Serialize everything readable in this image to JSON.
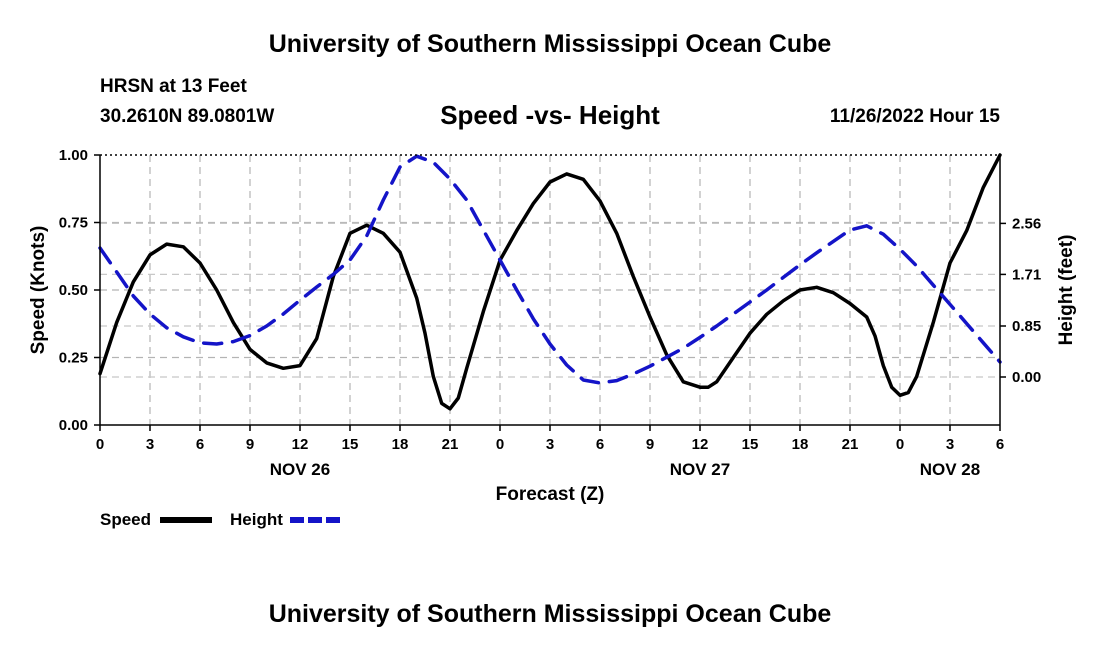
{
  "header": {
    "title": "University of Southern Mississippi Ocean Cube",
    "station": "HRSN at 13 Feet",
    "coords": "30.2610N  89.0801W",
    "subtitle": "Speed -vs- Height",
    "timestamp": "11/26/2022 Hour 15"
  },
  "footer": {
    "title": "University of Southern Mississippi Ocean Cube"
  },
  "chart_data": {
    "type": "line",
    "title": "Speed -vs- Height",
    "xlabel": "Forecast (Z)",
    "ylabel_left": "Speed (Knots)",
    "ylabel_right": "Height (feet)",
    "x_range_hours": [
      0,
      54
    ],
    "x_tick_hours": [
      0,
      3,
      6,
      9,
      12,
      15,
      18,
      21,
      24,
      27,
      30,
      33,
      36,
      39,
      42,
      45,
      48,
      51,
      54
    ],
    "x_tick_labels": [
      "0",
      "3",
      "6",
      "9",
      "12",
      "15",
      "18",
      "21",
      "0",
      "3",
      "6",
      "9",
      "12",
      "15",
      "18",
      "21",
      "0",
      "3",
      "6"
    ],
    "day_labels": [
      {
        "hour": 12,
        "label": "NOV 26"
      },
      {
        "hour": 36,
        "label": "NOV 27"
      },
      {
        "hour": 51,
        "label": "NOV 28"
      }
    ],
    "left_axis": {
      "range": [
        0,
        1
      ],
      "ticks": [
        0,
        0.25,
        0.5,
        0.75,
        1.0
      ],
      "tick_labels": [
        "0.00",
        "0.25",
        "0.50",
        "0.75",
        "1.00"
      ]
    },
    "right_axis": {
      "range": [
        -0.8,
        3.7
      ],
      "ticks": [
        0.0,
        0.85,
        1.71,
        2.56
      ],
      "tick_labels": [
        "0.00",
        "0.85",
        "1.71",
        "2.56"
      ]
    },
    "grid": true,
    "legend": [
      {
        "name": "Speed",
        "color": "#000000",
        "style": "solid"
      },
      {
        "name": "Height",
        "color": "#1414c8",
        "style": "dashed"
      }
    ],
    "series": [
      {
        "name": "Speed",
        "units": "Knots",
        "axis": "left",
        "color": "#000000",
        "x": [
          0,
          1,
          2,
          3,
          4,
          5,
          6,
          7,
          8,
          9,
          10,
          11,
          12,
          13,
          14,
          15,
          16,
          17,
          18,
          19,
          19.5,
          20,
          20.5,
          21,
          21.5,
          22,
          23,
          24,
          25,
          26,
          27,
          28,
          29,
          30,
          31,
          32,
          33,
          34,
          35,
          36,
          36.5,
          37,
          38,
          39,
          40,
          41,
          42,
          43,
          44,
          45,
          46,
          46.5,
          47,
          47.5,
          48,
          48.5,
          49,
          50,
          51,
          52,
          53,
          54
        ],
        "values": [
          0.19,
          0.38,
          0.53,
          0.63,
          0.67,
          0.66,
          0.6,
          0.5,
          0.38,
          0.28,
          0.23,
          0.21,
          0.22,
          0.32,
          0.55,
          0.71,
          0.74,
          0.71,
          0.64,
          0.47,
          0.34,
          0.18,
          0.08,
          0.06,
          0.1,
          0.21,
          0.42,
          0.61,
          0.72,
          0.82,
          0.9,
          0.93,
          0.91,
          0.83,
          0.71,
          0.55,
          0.4,
          0.26,
          0.16,
          0.14,
          0.14,
          0.16,
          0.25,
          0.34,
          0.41,
          0.46,
          0.5,
          0.51,
          0.49,
          0.45,
          0.4,
          0.33,
          0.22,
          0.14,
          0.11,
          0.12,
          0.18,
          0.38,
          0.6,
          0.72,
          0.88,
          1.0
        ]
      },
      {
        "name": "Height",
        "units": "feet",
        "axis": "right",
        "color": "#1414c8",
        "x": [
          0,
          1,
          2,
          3,
          4,
          5,
          6,
          7,
          8,
          9,
          10,
          11,
          12,
          13,
          14,
          15,
          16,
          17,
          18,
          19,
          20,
          21,
          22,
          23,
          24,
          25,
          26,
          27,
          28,
          29,
          30,
          31,
          32,
          33,
          34,
          35,
          36,
          37,
          38,
          39,
          40,
          41,
          42,
          43,
          44,
          45,
          46,
          47,
          48,
          49,
          50,
          51,
          52,
          53,
          54
        ],
        "values": [
          2.15,
          1.75,
          1.35,
          1.05,
          0.82,
          0.67,
          0.57,
          0.55,
          0.59,
          0.69,
          0.85,
          1.05,
          1.28,
          1.5,
          1.71,
          1.95,
          2.35,
          2.95,
          3.5,
          3.68,
          3.58,
          3.3,
          2.95,
          2.45,
          1.95,
          1.45,
          0.97,
          0.55,
          0.2,
          -0.05,
          -0.1,
          -0.06,
          0.05,
          0.18,
          0.33,
          0.48,
          0.66,
          0.85,
          1.05,
          1.25,
          1.45,
          1.66,
          1.87,
          2.07,
          2.26,
          2.45,
          2.52,
          2.38,
          2.13,
          1.85,
          1.53,
          1.21,
          0.89,
          0.57,
          0.25
        ]
      }
    ]
  }
}
